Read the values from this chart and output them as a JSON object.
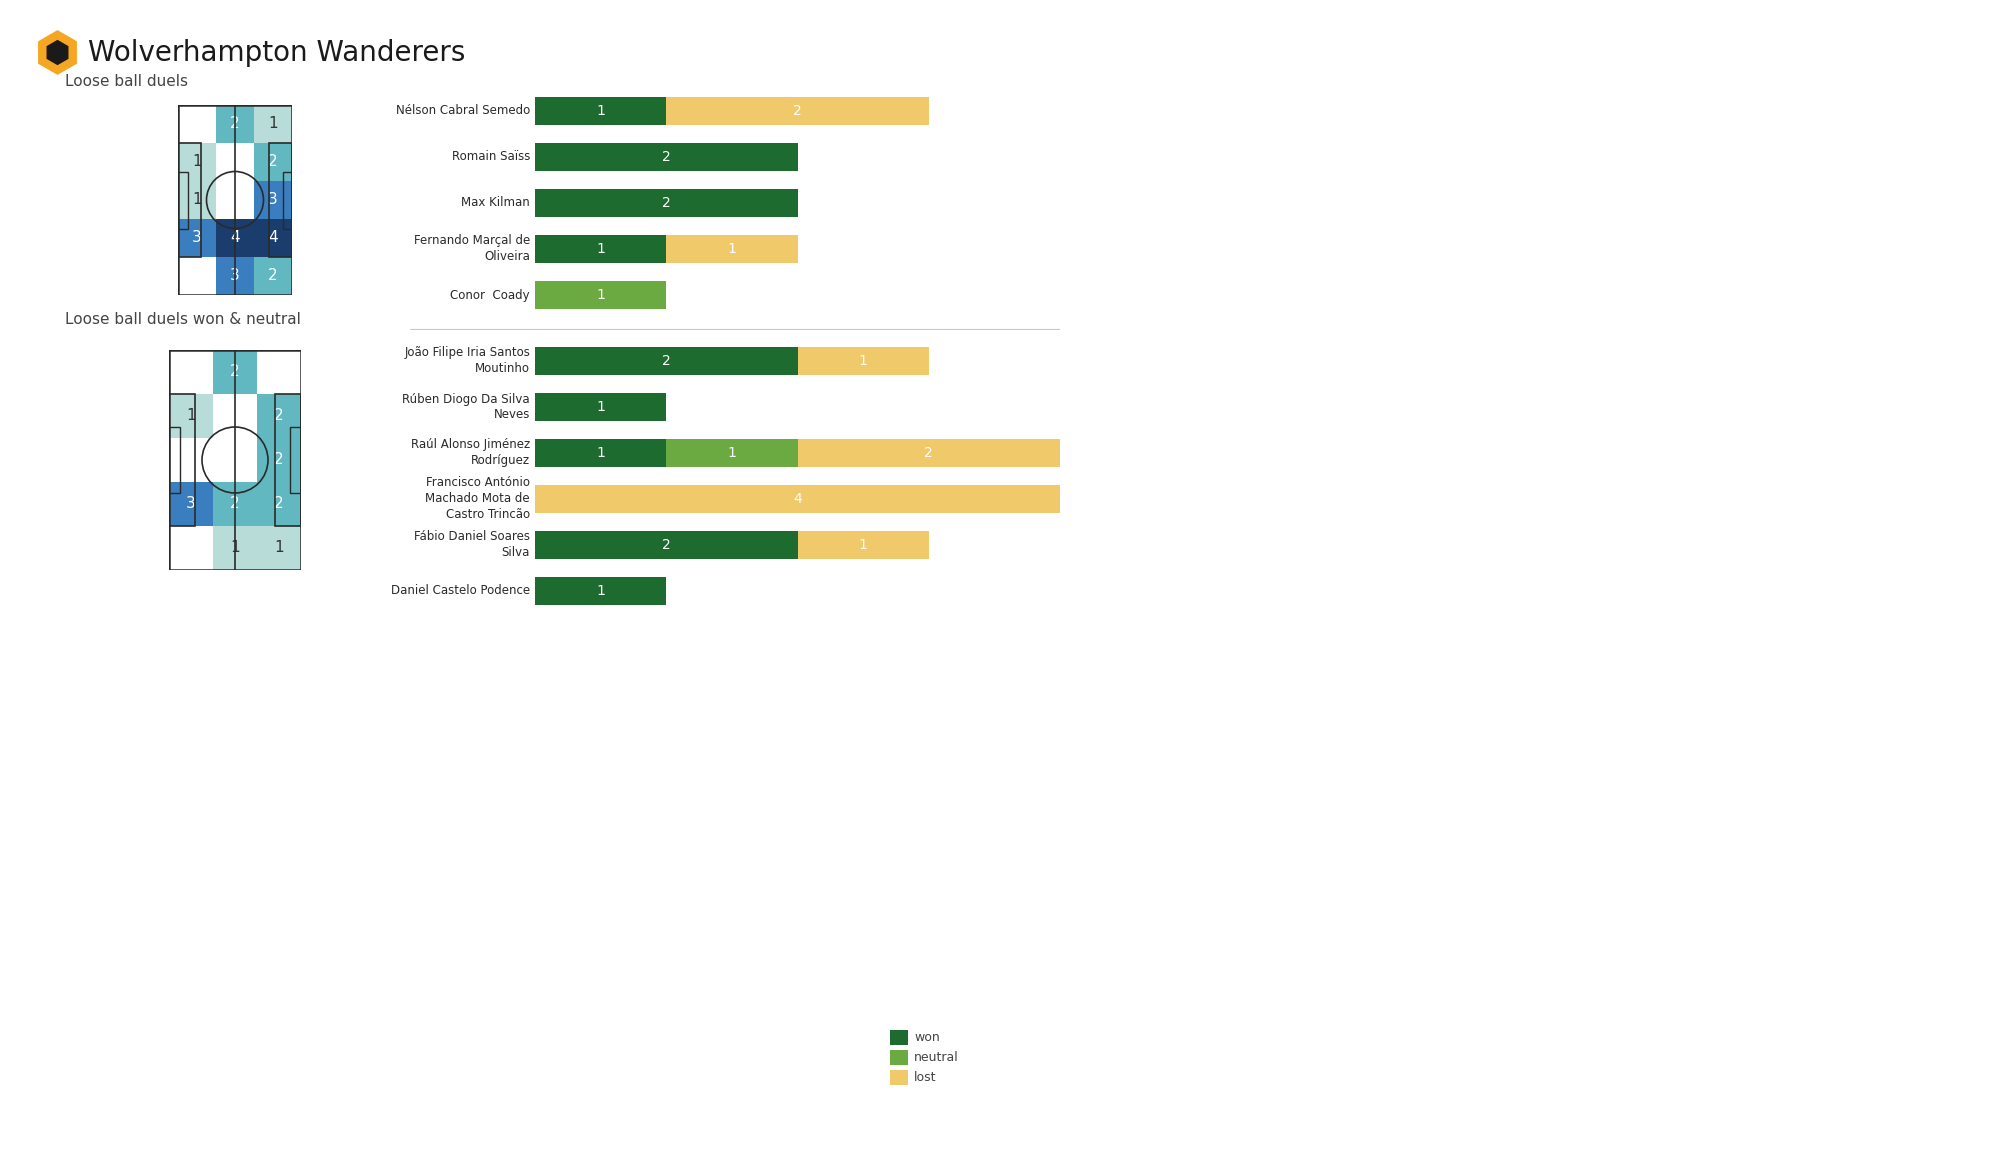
{
  "title": "Wolverhampton Wanderers",
  "section1_title": "Loose ball duels",
  "section2_title": "Loose ball duels won & neutral",
  "background_color": "#ffffff",
  "pitch_zone_colors": [
    "#ffffff",
    "#b8ddd9",
    "#62b8c0",
    "#3a7ebf",
    "#1b3d6e"
  ],
  "heatmap1_rows": 5,
  "heatmap1_cols": 3,
  "heatmap1": [
    [
      0,
      2,
      1
    ],
    [
      1,
      0,
      2
    ],
    [
      1,
      0,
      3
    ],
    [
      3,
      4,
      4
    ],
    [
      0,
      3,
      2
    ]
  ],
  "heatmap2_rows": 5,
  "heatmap2_cols": 3,
  "heatmap2": [
    [
      0,
      2,
      0
    ],
    [
      1,
      0,
      2
    ],
    [
      0,
      0,
      2
    ],
    [
      3,
      2,
      2
    ],
    [
      0,
      1,
      1
    ]
  ],
  "players": [
    {
      "name": "Nélson Cabral Semedo",
      "won": 1,
      "neutral": 0,
      "lost": 2,
      "group": 0
    },
    {
      "name": "Romain Saïss",
      "won": 2,
      "neutral": 0,
      "lost": 0,
      "group": 0
    },
    {
      "name": "Max Kilman",
      "won": 2,
      "neutral": 0,
      "lost": 0,
      "group": 0
    },
    {
      "name": "Fernando Marçal de\nOliveira",
      "won": 1,
      "neutral": 0,
      "lost": 1,
      "group": 0
    },
    {
      "name": "Conor  Coady",
      "won": 0,
      "neutral": 1,
      "lost": 0,
      "group": 0
    },
    {
      "name": "João Filipe Iria Santos\nMoutinho",
      "won": 2,
      "neutral": 0,
      "lost": 1,
      "group": 1
    },
    {
      "name": "Rúben Diogo Da Silva\nNeves",
      "won": 1,
      "neutral": 0,
      "lost": 0,
      "group": 1
    },
    {
      "name": "Raúl Alonso Jiménez\nRodríguez",
      "won": 1,
      "neutral": 1,
      "lost": 2,
      "group": 1
    },
    {
      "name": "Francisco António\nMachado Mota de\nCastro Trincão",
      "won": 0,
      "neutral": 0,
      "lost": 4,
      "group": 1
    },
    {
      "name": "Fábio Daniel Soares\nSilva",
      "won": 2,
      "neutral": 0,
      "lost": 1,
      "group": 1
    },
    {
      "name": "Daniel Castelo Podence",
      "won": 1,
      "neutral": 0,
      "lost": 0,
      "group": 1
    }
  ],
  "color_won": "#1e6b30",
  "color_neutral": "#6aaa40",
  "color_lost": "#f0ca6a",
  "max_bar_value": 4,
  "legend_labels": [
    "lost",
    "neutral",
    "won"
  ],
  "legend_colors": [
    "#f0ca6a",
    "#6aaa40",
    "#1e6b30"
  ]
}
